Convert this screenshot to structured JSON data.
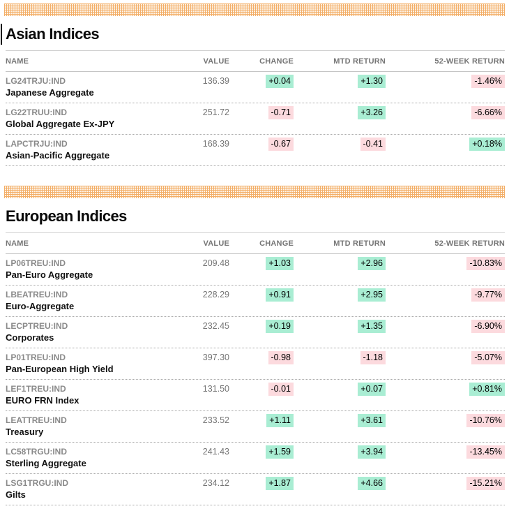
{
  "colors": {
    "positive_bg": "#a9edd3",
    "negative_bg": "#fcdade",
    "band_line": "#f3ae67",
    "band_bg": "#fdf3e7"
  },
  "sections": [
    {
      "title": "Asian Indices",
      "show_caret": true,
      "columns": [
        "NAME",
        "VALUE",
        "CHANGE",
        "MTD RETURN",
        "52-WEEK RETURN"
      ],
      "rows": [
        {
          "ticker": "LG24TRJU:IND",
          "name": "Japanese Aggregate",
          "value": "136.39",
          "change": "+0.04",
          "change_dir": "pos",
          "mtd": "+1.30",
          "mtd_dir": "pos",
          "week52": "-1.46%",
          "week52_dir": "neg"
        },
        {
          "ticker": "LG22TRUU:IND",
          "name": "Global Aggregate Ex-JPY",
          "value": "251.72",
          "change": "-0.71",
          "change_dir": "neg",
          "mtd": "+3.26",
          "mtd_dir": "pos",
          "week52": "-6.66%",
          "week52_dir": "neg"
        },
        {
          "ticker": "LAPCTRJU:IND",
          "name": "Asian-Pacific Aggregate",
          "value": "168.39",
          "change": "-0.67",
          "change_dir": "neg",
          "mtd": "-0.41",
          "mtd_dir": "neg",
          "week52": "+0.18%",
          "week52_dir": "pos"
        }
      ]
    },
    {
      "title": "European Indices",
      "show_caret": false,
      "columns": [
        "NAME",
        "VALUE",
        "CHANGE",
        "MTD RETURN",
        "52-WEEK RETURN"
      ],
      "rows": [
        {
          "ticker": "LP06TREU:IND",
          "name": "Pan-Euro Aggregate",
          "value": "209.48",
          "change": "+1.03",
          "change_dir": "pos",
          "mtd": "+2.96",
          "mtd_dir": "pos",
          "week52": "-10.83%",
          "week52_dir": "neg"
        },
        {
          "ticker": "LBEATREU:IND",
          "name": "Euro-Aggregate",
          "value": "228.29",
          "change": "+0.91",
          "change_dir": "pos",
          "mtd": "+2.95",
          "mtd_dir": "pos",
          "week52": "-9.77%",
          "week52_dir": "neg"
        },
        {
          "ticker": "LECPTREU:IND",
          "name": "Corporates",
          "value": "232.45",
          "change": "+0.19",
          "change_dir": "pos",
          "mtd": "+1.35",
          "mtd_dir": "pos",
          "week52": "-6.90%",
          "week52_dir": "neg"
        },
        {
          "ticker": "LP01TREU:IND",
          "name": "Pan-European High Yield",
          "value": "397.30",
          "change": "-0.98",
          "change_dir": "neg",
          "mtd": "-1.18",
          "mtd_dir": "neg",
          "week52": "-5.07%",
          "week52_dir": "neg"
        },
        {
          "ticker": "LEF1TREU:IND",
          "name": "EURO FRN Index",
          "value": "131.50",
          "change": "-0.01",
          "change_dir": "neg",
          "mtd": "+0.07",
          "mtd_dir": "pos",
          "week52": "+0.81%",
          "week52_dir": "pos"
        },
        {
          "ticker": "LEATTREU:IND",
          "name": "Treasury",
          "value": "233.52",
          "change": "+1.11",
          "change_dir": "pos",
          "mtd": "+3.61",
          "mtd_dir": "pos",
          "week52": "-10.76%",
          "week52_dir": "neg"
        },
        {
          "ticker": "LC58TRGU:IND",
          "name": "Sterling Aggregate",
          "value": "241.43",
          "change": "+1.59",
          "change_dir": "pos",
          "mtd": "+3.94",
          "mtd_dir": "pos",
          "week52": "-13.45%",
          "week52_dir": "neg"
        },
        {
          "ticker": "LSG1TRGU:IND",
          "name": "Gilts",
          "value": "234.12",
          "change": "+1.87",
          "change_dir": "pos",
          "mtd": "+4.66",
          "mtd_dir": "pos",
          "week52": "-15.21%",
          "week52_dir": "neg"
        }
      ]
    }
  ]
}
